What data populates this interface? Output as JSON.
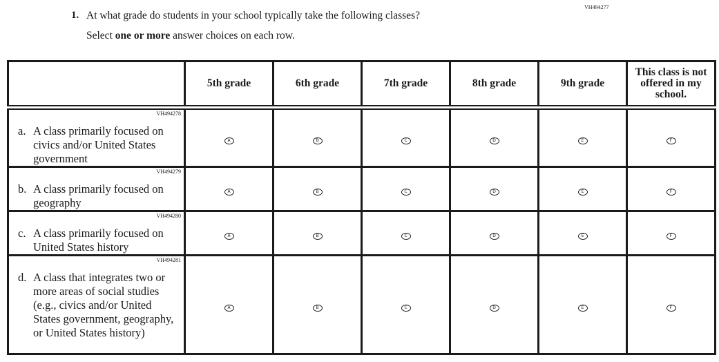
{
  "question": {
    "id": "VH494277",
    "number": "1.",
    "text": "At what grade do students in your school typically take the following classes?",
    "instruction_pre": "Select ",
    "instruction_bold": "one or more",
    "instruction_post": " answer choices on each row."
  },
  "columns": [
    "5th grade",
    "6th grade",
    "7th grade",
    "8th grade",
    "9th grade",
    "This class is not offered in my school."
  ],
  "bubbles": [
    "A",
    "B",
    "C",
    "D",
    "E",
    "F"
  ],
  "rows": [
    {
      "id": "VH494278",
      "letter": "a.",
      "text": "A class primarily focused on civics and/or United States government"
    },
    {
      "id": "VH494279",
      "letter": "b.",
      "text": "A class primarily focused on geography"
    },
    {
      "id": "VH494280",
      "letter": "c.",
      "text": "A class primarily focused on United States history"
    },
    {
      "id": "VH494281",
      "letter": "d.",
      "text": "A class that integrates two or more areas of social studies (e.g., civics and/or United States government, geography, or United States history)"
    }
  ]
}
